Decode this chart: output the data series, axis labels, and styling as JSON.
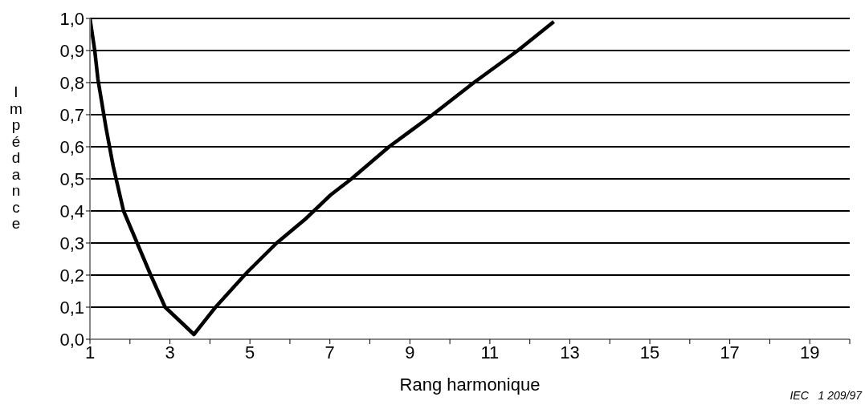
{
  "chart_data": {
    "type": "line",
    "xlabel": "Rang harmonique",
    "ylabel": "Impédance",
    "annotations": [
      "IEC   1 209/97"
    ],
    "x": [
      1,
      1.12,
      1.2,
      1.4,
      1.58,
      1.84,
      2.18,
      2.52,
      2.88,
      3.39,
      3.6,
      4.14,
      4.94,
      5.67,
      6.39,
      7.02,
      7.54,
      8.48,
      9.57,
      10.6,
      11.7,
      12.6
    ],
    "series": [
      {
        "color": "#000000",
        "values": [
          1.0,
          0.9,
          0.81,
          0.66,
          0.54,
          0.4,
          0.3,
          0.2,
          0.1,
          0.04,
          0.015,
          0.1,
          0.21,
          0.3,
          0.375,
          0.45,
          0.5,
          0.6,
          0.7,
          0.8,
          0.9,
          0.99
        ]
      }
    ],
    "xlim": [
      1,
      20
    ],
    "xticks": [
      1,
      {
        "value": 2,
        "label": null
      },
      3,
      {
        "value": 4,
        "label": null
      },
      5,
      {
        "value": 6,
        "label": null
      },
      7,
      {
        "value": 8,
        "label": null
      },
      9,
      {
        "value": 10,
        "label": null
      },
      11,
      {
        "value": 12,
        "label": null
      },
      13,
      {
        "value": 14,
        "label": null
      },
      15,
      {
        "value": 16,
        "label": null
      },
      17,
      {
        "value": 18,
        "label": null
      },
      19,
      {
        "value": 20,
        "label": null
      }
    ],
    "ylim": [
      0,
      1
    ],
    "yticks": [
      {
        "value": 0,
        "label": "0,0"
      },
      {
        "value": 0.1,
        "label": "0,1"
      },
      {
        "value": 0.2,
        "label": "0,2"
      },
      {
        "value": 0.3,
        "label": "0,3"
      },
      {
        "value": 0.4,
        "label": "0,4"
      },
      {
        "value": 0.5,
        "label": "0,5"
      },
      {
        "value": 0.6,
        "label": "0,6"
      },
      {
        "value": 0.7,
        "label": "0,7"
      },
      {
        "value": 0.8,
        "label": "0,8"
      },
      {
        "value": 0.9,
        "label": "0,9"
      },
      {
        "value": 1,
        "label": "1,0"
      }
    ],
    "grid": "y",
    "legend": false,
    "marker": "none",
    "line_style": "solid"
  }
}
